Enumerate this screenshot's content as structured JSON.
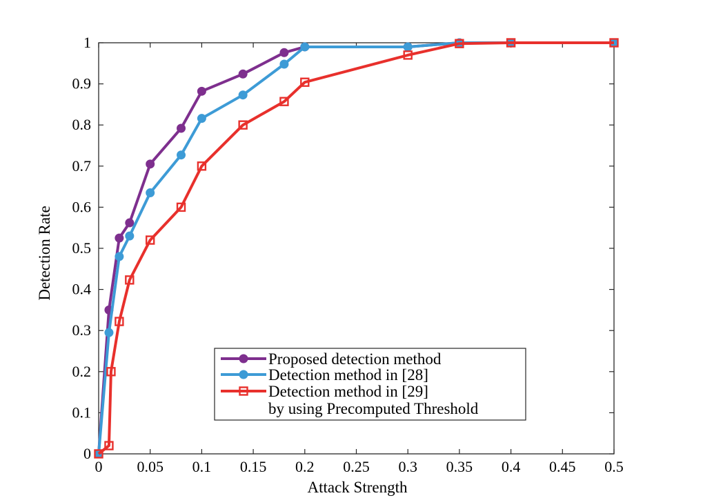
{
  "chart_data": {
    "type": "line",
    "title": "",
    "xlabel": "Attack Strength",
    "ylabel": "Detection Rate",
    "xlim": [
      0,
      0.5
    ],
    "ylim": [
      0,
      1
    ],
    "xticks": [
      "0",
      "0.05",
      "0.1",
      "0.15",
      "0.2",
      "0.25",
      "0.3",
      "0.35",
      "0.4",
      "0.45",
      "0.5"
    ],
    "yticks": [
      "0",
      "0.1",
      "0.2",
      "0.3",
      "0.4",
      "0.5",
      "0.6",
      "0.7",
      "0.8",
      "0.9",
      "1"
    ],
    "grid": false,
    "legend_position": "bottom-right",
    "series": [
      {
        "name": "Proposed detection method",
        "color": "#7e2f8e",
        "marker": "circle",
        "x": [
          0,
          0.01,
          0.02,
          0.03,
          0.05,
          0.08,
          0.1,
          0.14,
          0.18,
          0.2,
          0.3,
          0.35,
          0.4,
          0.5
        ],
        "y": [
          0,
          0.35,
          0.525,
          0.562,
          0.705,
          0.792,
          0.882,
          0.924,
          0.976,
          0.99,
          0.99,
          1.0,
          1.0,
          1.0
        ]
      },
      {
        "name": "Detection method in [28]",
        "color": "#3d9bd6",
        "marker": "circle",
        "x": [
          0,
          0.01,
          0.02,
          0.03,
          0.05,
          0.08,
          0.1,
          0.14,
          0.18,
          0.2,
          0.3,
          0.35,
          0.4,
          0.5
        ],
        "y": [
          0,
          0.295,
          0.48,
          0.53,
          0.635,
          0.727,
          0.816,
          0.873,
          0.948,
          0.99,
          0.99,
          1.0,
          1.0,
          1.0
        ]
      },
      {
        "name": "Detection method in [29]",
        "name_line2": "by using Precomputed Threshold",
        "color": "#e8302c",
        "marker": "square",
        "x": [
          0,
          0.01,
          0.012,
          0.02,
          0.03,
          0.05,
          0.08,
          0.1,
          0.14,
          0.18,
          0.2,
          0.3,
          0.35,
          0.4,
          0.5
        ],
        "y": [
          0,
          0.02,
          0.2,
          0.322,
          0.423,
          0.52,
          0.6,
          0.7,
          0.8,
          0.857,
          0.904,
          0.97,
          0.998,
          1.0,
          1.0
        ]
      }
    ]
  }
}
